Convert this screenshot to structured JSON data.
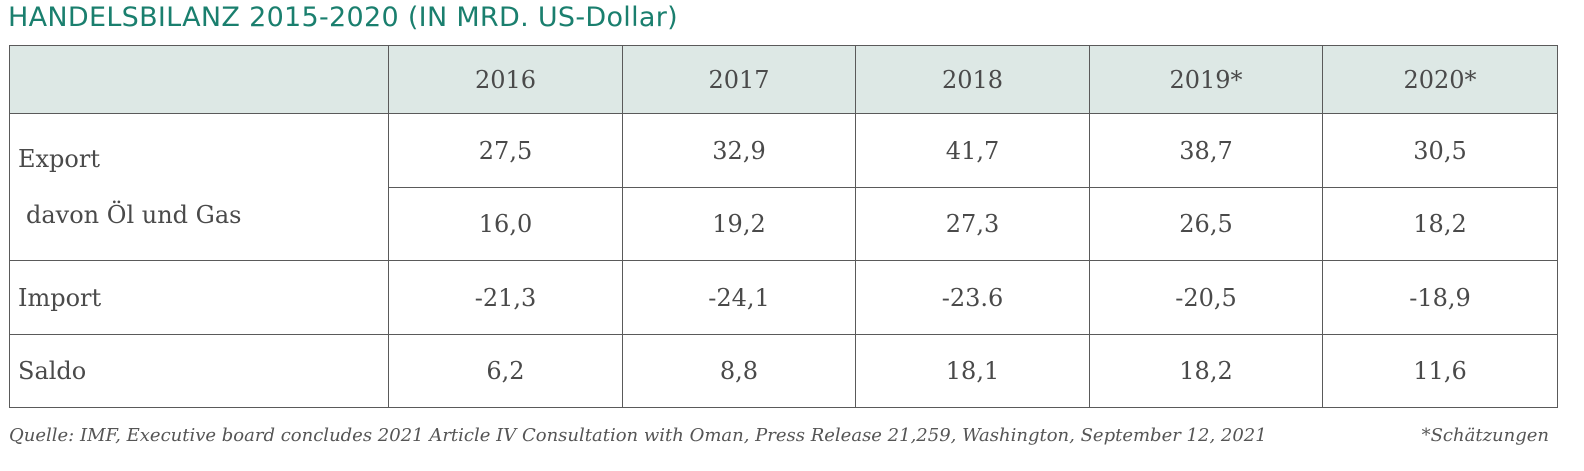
{
  "title": "HANDELSBILANZ 2015-2020 (IN MRD. US-Dollar)",
  "table": {
    "columns": [
      "",
      "2016",
      "2017",
      "2018",
      "2019*",
      "2020*"
    ],
    "rows": [
      {
        "label": "Export",
        "values": [
          "27,5",
          "32,9",
          "41,7",
          "38,7",
          "30,5"
        ]
      },
      {
        "label": "davon  Öl und Gas",
        "values": [
          "16,0",
          "19,2",
          "27,3",
          "26,5",
          "18,2"
        ]
      },
      {
        "label": "Import",
        "values": [
          "-21,3",
          "-24,1",
          "-23.6",
          "-20,5",
          "-18,9"
        ]
      },
      {
        "label": "Saldo",
        "values": [
          "6,2",
          "8,8",
          "18,1",
          "18,2",
          "11,6"
        ]
      }
    ]
  },
  "footer": {
    "source": "Quelle:  IMF, Executive board concludes 2021 Article IV Consultation with Oman,  Press Release 21,259, Washington, September 12, 2021",
    "note": "*Schätzungen"
  },
  "colors": {
    "title": "#1a7f6e",
    "header_background": "#dde8e5",
    "border": "#5a5a5a"
  }
}
